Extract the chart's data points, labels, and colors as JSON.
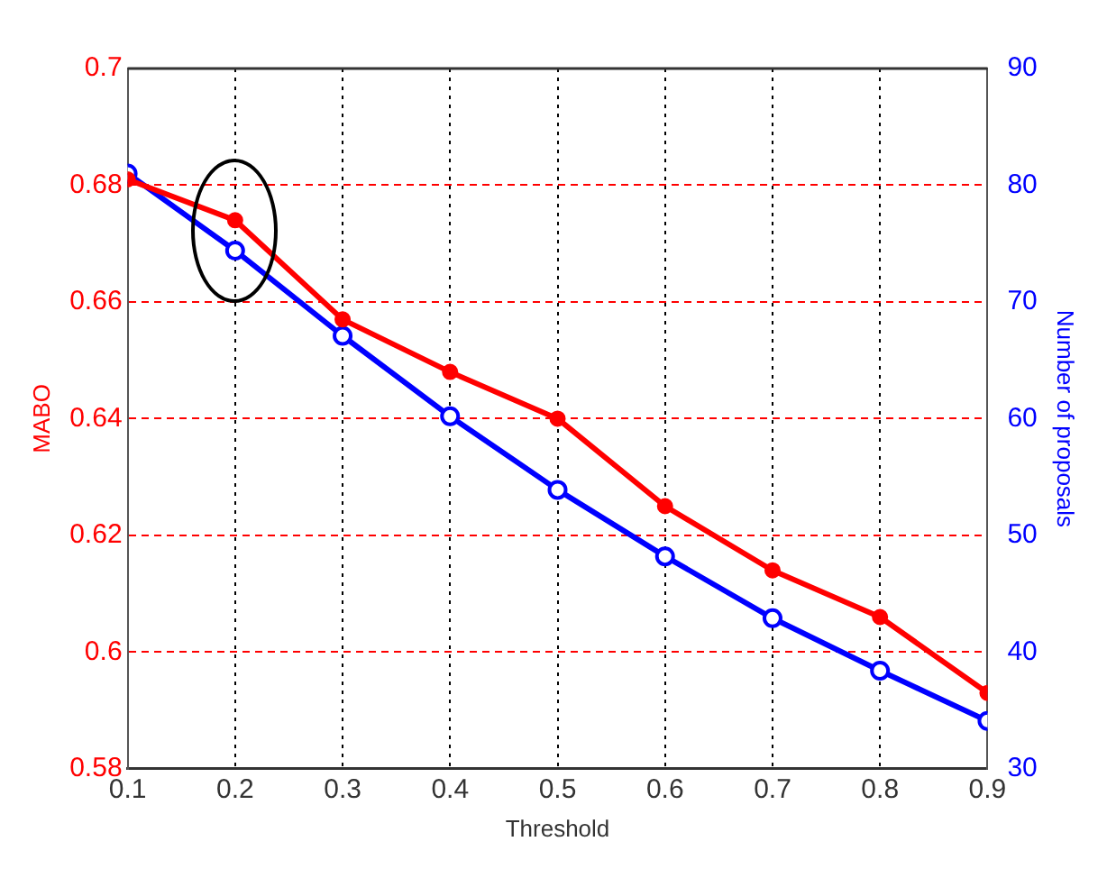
{
  "chart_data": {
    "type": "line",
    "xlabel": "Threshold",
    "ylabel": "MABO",
    "y2label": "Number of proposals",
    "x": [
      0.1,
      0.2,
      0.3,
      0.4,
      0.5,
      0.6,
      0.7,
      0.8,
      0.9
    ],
    "series": [
      {
        "color": "#ff0000",
        "values": [
          0.681,
          0.674,
          0.657,
          0.648,
          0.64,
          0.625,
          0.614,
          0.606,
          0.593
        ]
      },
      {
        "color": "#0000ff",
        "axis": "y2",
        "values": [
          81,
          74.4,
          67.1,
          60.2,
          53.9,
          48.2,
          42.9,
          38.4,
          34.1
        ]
      }
    ],
    "xlim": [
      0.1,
      0.9
    ],
    "xticks": [
      0.1,
      0.2,
      0.3,
      0.4,
      0.5,
      0.6,
      0.7,
      0.8,
      0.9
    ],
    "ylim": [
      0.58,
      0.7
    ],
    "yticks": [
      0.58,
      0.6,
      0.62,
      0.64,
      0.66,
      0.68,
      0.7
    ],
    "y2lim": [
      30,
      90
    ],
    "y2ticks": [
      30,
      40,
      50,
      60,
      70,
      80,
      90
    ],
    "grid": true,
    "legend": false,
    "marker": "circle",
    "line_style": "solid"
  }
}
